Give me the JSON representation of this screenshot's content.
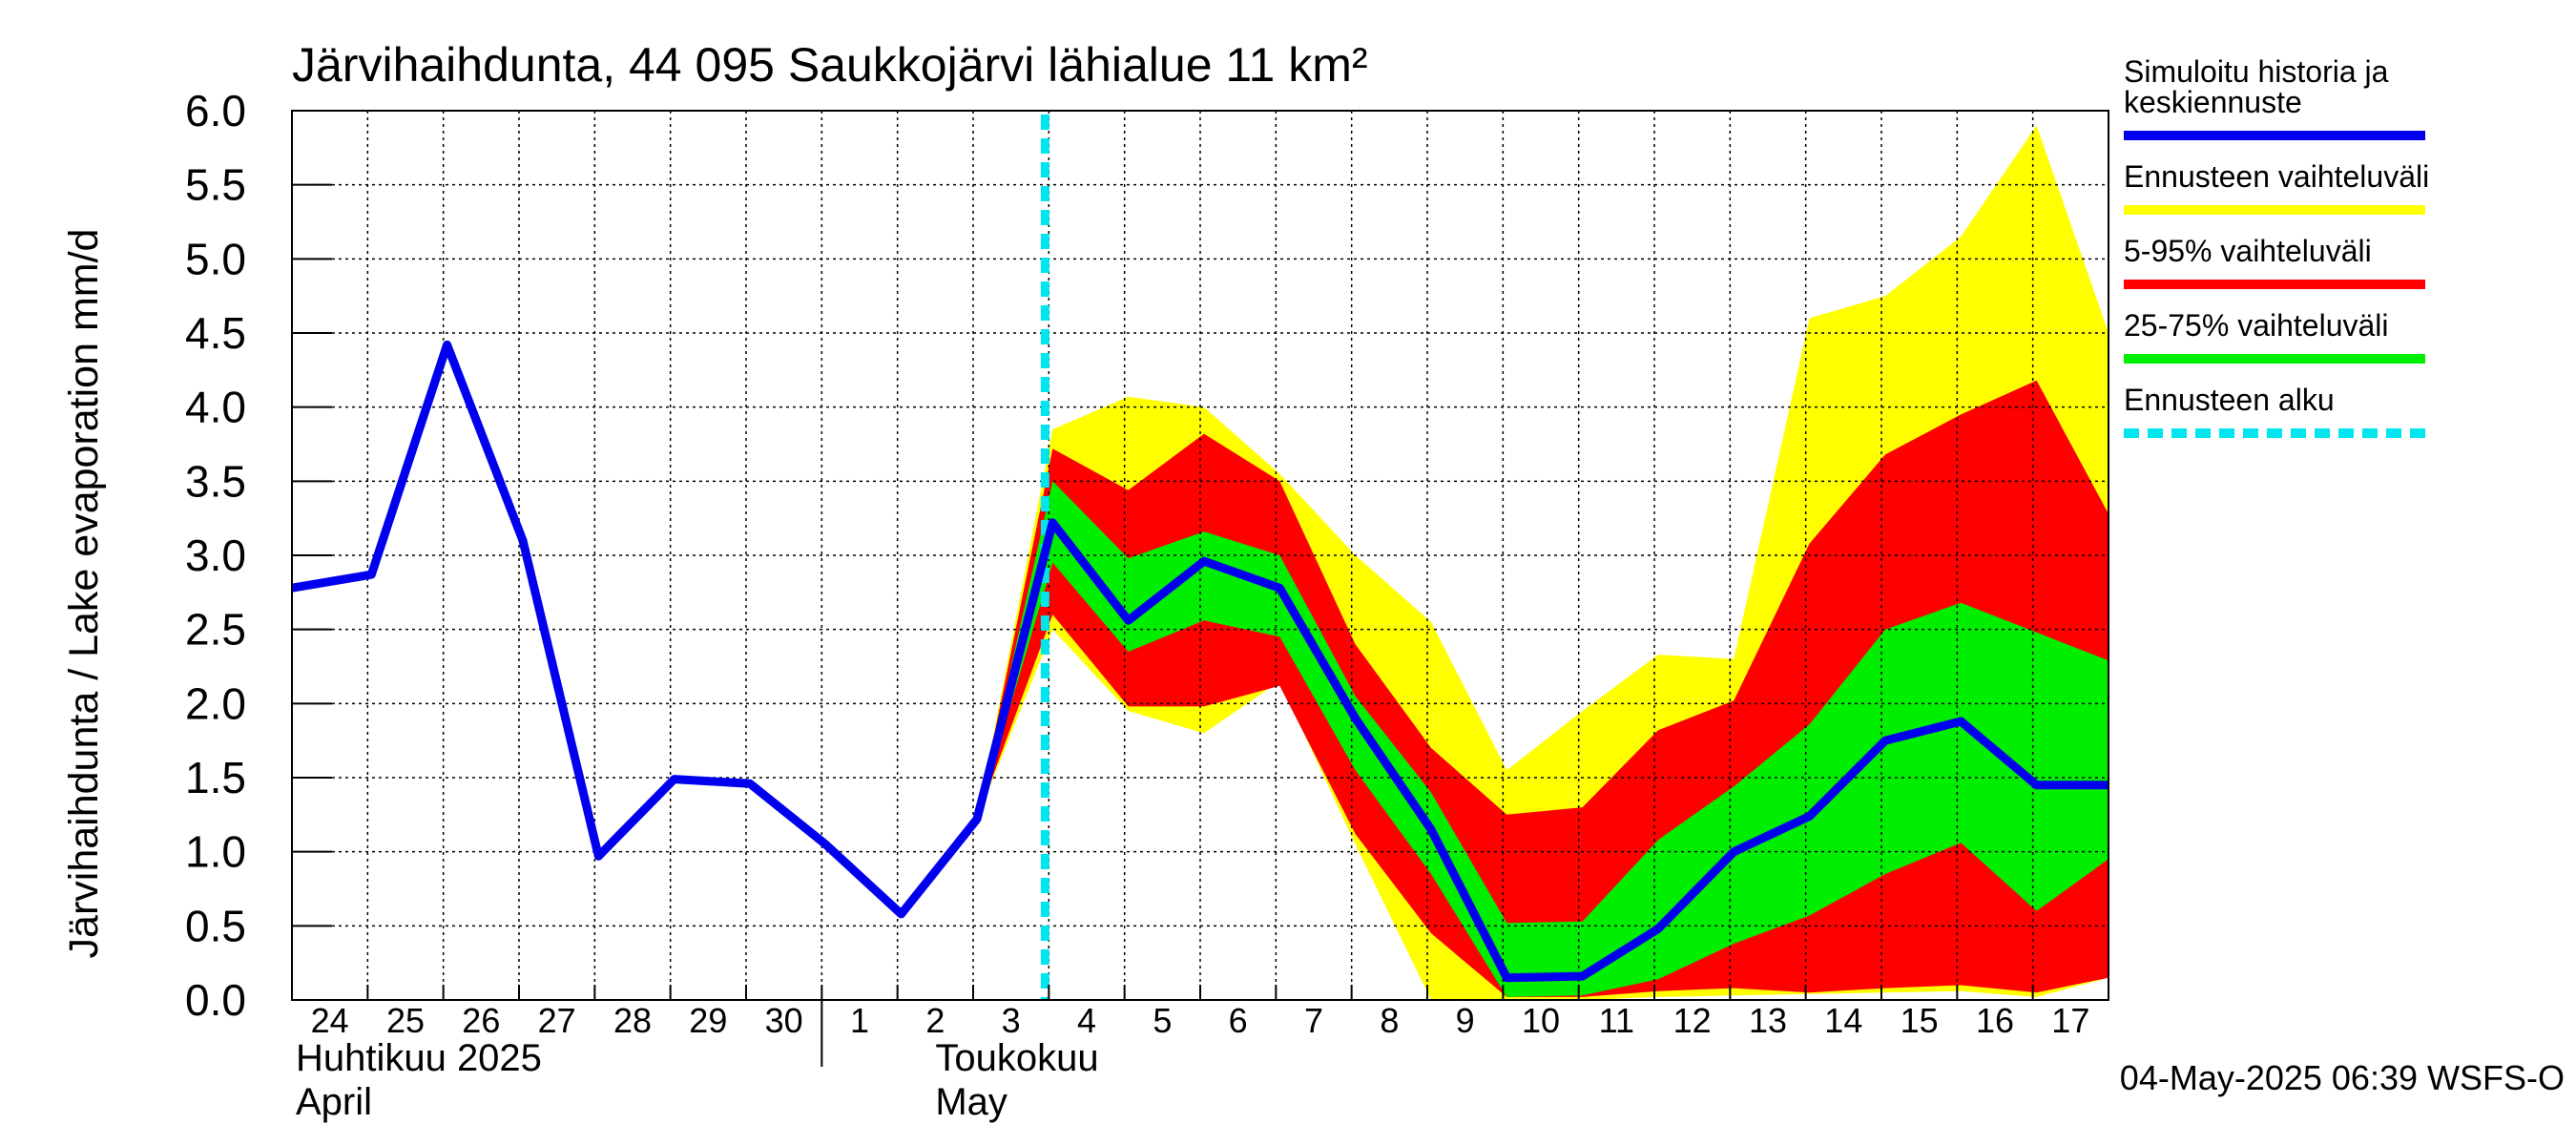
{
  "chart_data": {
    "type": "area",
    "title": "Järvihaihdunta, 44 095 Saukkojärvi lähialue 11 km²",
    "ylabel": "Järvihaihdunta / Lake evaporation   mm/d",
    "ylim": [
      0,
      6
    ],
    "yticks": [
      "0.0",
      "0.5",
      "1.0",
      "1.5",
      "2.0",
      "2.5",
      "3.0",
      "3.5",
      "4.0",
      "4.5",
      "5.0",
      "5.5",
      "6.0"
    ],
    "x_day_labels": [
      "24",
      "25",
      "26",
      "27",
      "28",
      "29",
      "30",
      "1",
      "2",
      "3",
      "4",
      "5",
      "6",
      "7",
      "8",
      "9",
      "10",
      "11",
      "12",
      "13",
      "14",
      "15",
      "16",
      "17"
    ],
    "month_labels": [
      {
        "line1": "Huhtikuu  2025",
        "line2": "April"
      },
      {
        "line1": "Toukokuu",
        "line2": "May"
      }
    ],
    "forecast_start_day_index": 10,
    "grid": true,
    "legend_position": "right",
    "legend": [
      {
        "label": "Simuloitu historia ja keskiennuste",
        "color": "#0000ee",
        "style": "solid"
      },
      {
        "label": "Ennusteen vaihteluväli",
        "color": "#ffff00",
        "style": "solid"
      },
      {
        "label": "5-95% vaihteluväli",
        "color": "#ff0000",
        "style": "solid"
      },
      {
        "label": "25-75% vaihteluväli",
        "color": "#00ee00",
        "style": "solid"
      },
      {
        "label": "Ennusteen alku",
        "color": "#00e5ee",
        "style": "dashed"
      }
    ],
    "median_series": {
      "name": "Simuloitu historia ja keskiennuste",
      "x": [
        -0.05,
        1,
        2,
        3,
        4,
        5,
        6,
        7,
        8,
        9,
        10,
        11,
        12,
        13,
        14,
        15,
        16,
        17,
        18,
        19,
        20,
        21,
        22,
        23,
        23.95
      ],
      "y": [
        2.78,
        2.87,
        4.42,
        3.1,
        0.97,
        1.49,
        1.46,
        1.05,
        0.58,
        1.22,
        3.22,
        2.56,
        2.96,
        2.78,
        1.9,
        1.15,
        0.15,
        0.16,
        0.48,
        1.0,
        1.24,
        1.75,
        1.88,
        1.45,
        1.45
      ]
    },
    "bands": {
      "x": [
        9,
        10,
        11,
        12,
        13,
        14,
        15,
        16,
        17,
        18,
        19,
        20,
        21,
        22,
        23,
        23.95
      ],
      "full_range": {
        "name": "Ennusteen vaihteluväli",
        "low": [
          1.22,
          2.5,
          1.95,
          1.8,
          2.15,
          1.05,
          0.0,
          0.0,
          0.0,
          0.02,
          0.03,
          0.04,
          0.05,
          0.06,
          0.02,
          0.15
        ],
        "high": [
          1.22,
          3.85,
          4.07,
          4.0,
          3.55,
          3.0,
          2.55,
          1.55,
          1.95,
          2.33,
          2.3,
          4.6,
          4.75,
          5.15,
          5.9,
          4.5
        ]
      },
      "p5_95": {
        "name": "5-95% vaihteluväli",
        "low": [
          1.22,
          2.6,
          1.98,
          1.98,
          2.12,
          1.12,
          0.45,
          0.02,
          0.02,
          0.06,
          0.08,
          0.05,
          0.08,
          0.1,
          0.05,
          0.15
        ],
        "high": [
          1.22,
          3.72,
          3.44,
          3.82,
          3.5,
          2.4,
          1.7,
          1.25,
          1.3,
          1.82,
          2.02,
          3.08,
          3.68,
          3.95,
          4.18,
          3.28
        ]
      },
      "p25_75": {
        "name": "25-75% vaihteluväli",
        "low": [
          1.22,
          2.95,
          2.35,
          2.56,
          2.45,
          1.55,
          0.85,
          0.02,
          0.03,
          0.14,
          0.38,
          0.57,
          0.85,
          1.06,
          0.6,
          0.95
        ],
        "high": [
          1.22,
          3.5,
          2.98,
          3.16,
          3.0,
          2.05,
          1.4,
          0.52,
          0.53,
          1.08,
          1.44,
          1.86,
          2.5,
          2.68,
          2.48,
          2.29
        ]
      }
    }
  },
  "footer": {
    "timestamp": "04-May-2025 06:39 WSFS-O"
  }
}
